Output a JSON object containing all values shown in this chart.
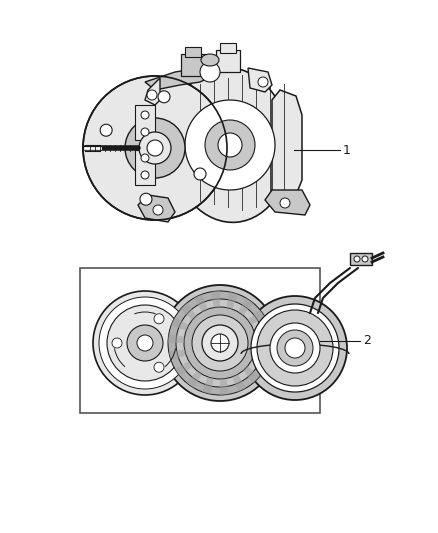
{
  "background_color": "#ffffff",
  "fig_width": 4.38,
  "fig_height": 5.33,
  "dpi": 100,
  "line_color": "#1a1a1a",
  "light_gray": "#e8e8e8",
  "mid_gray": "#c8c8c8",
  "dark_gray": "#888888",
  "label1": "1",
  "label2": "2",
  "label_fontsize": 9
}
